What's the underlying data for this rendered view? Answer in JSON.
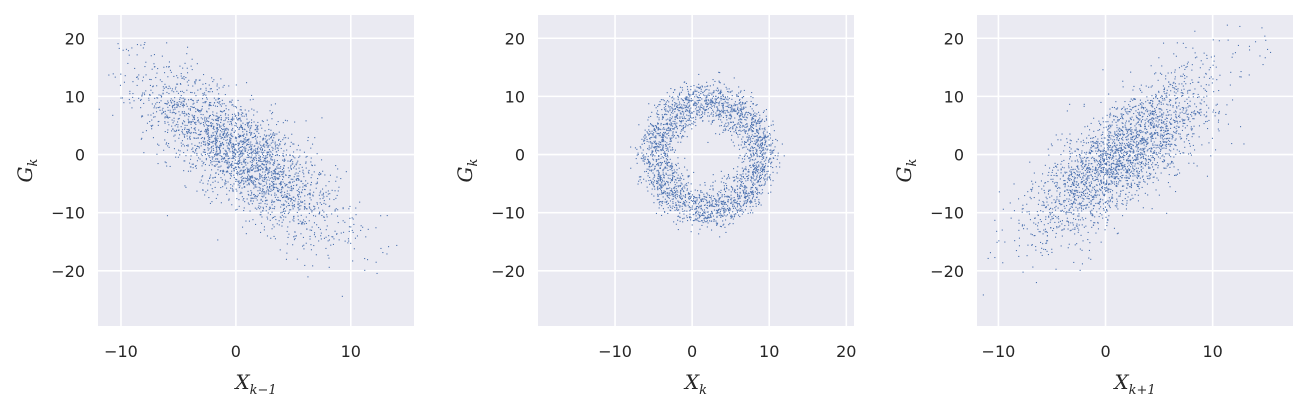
{
  "chart_data": [
    {
      "type": "scatter",
      "x_var": "X",
      "x_sub": "k−1",
      "y_var": "G",
      "y_sub": "k",
      "xlim": [
        -12,
        15.5
      ],
      "ylim": [
        -29.5,
        24
      ],
      "xticks": [
        -10,
        0,
        10
      ],
      "yticks": [
        20,
        10,
        0,
        -10,
        -20
      ],
      "xtick_labels": [
        "−10",
        "0",
        "10"
      ],
      "ytick_labels": [
        "20",
        "10",
        "0",
        "−10",
        "−20"
      ],
      "grid": true,
      "pattern": "negative-correlation",
      "center": [
        0.5,
        0
      ],
      "slope": -1.3,
      "spread_x": 4.2,
      "spread_y": 4.5,
      "point_color": "#4c72b0"
    },
    {
      "type": "scatter",
      "x_var": "X",
      "x_sub": "k",
      "y_var": "G",
      "y_sub": "k",
      "xlim": [
        -20,
        21
      ],
      "ylim": [
        -29.5,
        24
      ],
      "xticks": [
        -10,
        0,
        10,
        20
      ],
      "yticks": [
        20,
        10,
        0,
        -10,
        -20
      ],
      "xtick_labels": [
        "−10",
        "0",
        "10",
        "20"
      ],
      "ytick_labels": [
        "20",
        "10",
        "0",
        "−10",
        "−20"
      ],
      "grid": true,
      "pattern": "ring",
      "center": [
        2,
        0
      ],
      "radius_x": 8,
      "radius_y": 11,
      "point_color": "#4c72b0"
    },
    {
      "type": "scatter",
      "x_var": "X",
      "x_sub": "k+1",
      "y_var": "G",
      "y_sub": "k",
      "xlim": [
        -12,
        17.5
      ],
      "ylim": [
        -29.5,
        24
      ],
      "xticks": [
        -10,
        0,
        10
      ],
      "yticks": [
        20,
        10,
        0,
        -10,
        -20
      ],
      "xtick_labels": [
        "−10",
        "0",
        "10"
      ],
      "ytick_labels": [
        "20",
        "10",
        "0",
        "−10",
        "−20"
      ],
      "grid": true,
      "pattern": "positive-correlation",
      "center": [
        1.5,
        0
      ],
      "slope": 1.3,
      "spread_x": 4.2,
      "spread_y": 4.5,
      "point_color": "#4c72b0"
    }
  ]
}
